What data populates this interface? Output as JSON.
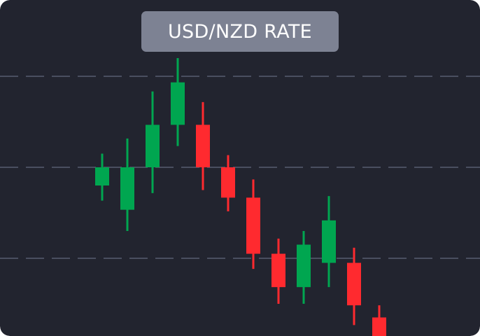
{
  "colors": {
    "background": "#22242f",
    "badge_bg": "#7d8293",
    "badge_text": "#ffffff",
    "grid": "#4a4f60",
    "up": "#00a650",
    "down": "#ff2a2f"
  },
  "chart_data": {
    "type": "candlestick",
    "title": "USD/NZD RATE",
    "xlabel": "",
    "ylabel": "",
    "ylim": [
      0,
      100
    ],
    "grid": "dashed-horizontal",
    "gridlines": [
      20,
      50,
      80
    ],
    "candles": [
      {
        "open": 44.0,
        "close": 50.0,
        "high": 54.5,
        "low": 39.0
      },
      {
        "open": 36.0,
        "close": 50.0,
        "high": 59.5,
        "low": 29.0
      },
      {
        "open": 50.0,
        "close": 64.0,
        "high": 75.0,
        "low": 41.5
      },
      {
        "open": 64.0,
        "close": 78.0,
        "high": 86.0,
        "low": 57.0
      },
      {
        "open": 64.0,
        "close": 50.0,
        "high": 71.5,
        "low": 42.5
      },
      {
        "open": 50.0,
        "close": 40.0,
        "high": 54.0,
        "low": 35.5
      },
      {
        "open": 40.0,
        "close": 21.5,
        "high": 46.0,
        "low": 16.5
      },
      {
        "open": 21.5,
        "close": 10.5,
        "high": 26.5,
        "low": 5.0
      },
      {
        "open": 10.5,
        "close": 24.5,
        "high": 29.0,
        "low": 5.0
      },
      {
        "open": 18.5,
        "close": 32.5,
        "high": 40.5,
        "low": 10.5
      },
      {
        "open": 18.5,
        "close": 4.5,
        "high": 23.5,
        "low": -2.0
      },
      {
        "open": 0.5,
        "close": -6.5,
        "high": 4.5,
        "low": -9.0
      }
    ]
  }
}
